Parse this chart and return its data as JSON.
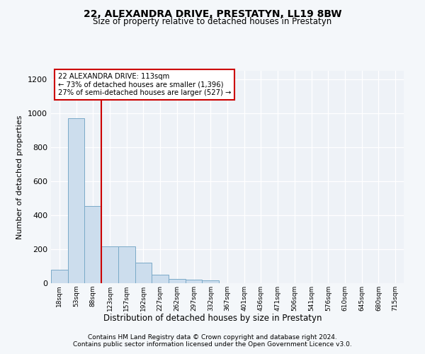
{
  "title": "22, ALEXANDRA DRIVE, PRESTATYN, LL19 8BW",
  "subtitle": "Size of property relative to detached houses in Prestatyn",
  "xlabel": "Distribution of detached houses by size in Prestatyn",
  "ylabel": "Number of detached properties",
  "bin_labels": [
    "18sqm",
    "53sqm",
    "88sqm",
    "123sqm",
    "157sqm",
    "192sqm",
    "227sqm",
    "262sqm",
    "297sqm",
    "332sqm",
    "367sqm",
    "401sqm",
    "436sqm",
    "471sqm",
    "506sqm",
    "541sqm",
    "576sqm",
    "610sqm",
    "645sqm",
    "680sqm",
    "715sqm"
  ],
  "bar_heights": [
    80,
    970,
    455,
    215,
    215,
    120,
    48,
    25,
    22,
    15,
    0,
    0,
    0,
    0,
    0,
    0,
    0,
    0,
    0,
    0,
    0
  ],
  "bar_color": "#ccdded",
  "bar_edge_color": "#7aaac8",
  "vline_color": "#cc0000",
  "annotation_title": "22 ALEXANDRA DRIVE: 113sqm",
  "annotation_line1": "← 73% of detached houses are smaller (1,396)",
  "annotation_line2": "27% of semi-detached houses are larger (527) →",
  "annotation_box_color": "#ffffff",
  "annotation_border_color": "#cc0000",
  "ylim": [
    0,
    1250
  ],
  "yticks": [
    0,
    200,
    400,
    600,
    800,
    1000,
    1200
  ],
  "footer1": "Contains HM Land Registry data © Crown copyright and database right 2024.",
  "footer2": "Contains public sector information licensed under the Open Government Licence v3.0.",
  "bg_color": "#f4f7fa",
  "plot_bg_color": "#eef2f7"
}
